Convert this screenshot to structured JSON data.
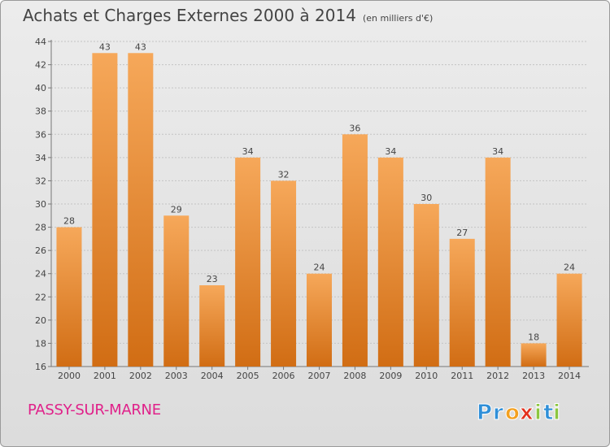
{
  "chart_title": "Achats et Charges Externes 2000 à 2014",
  "chart_subtitle": "(en milliers d'€)",
  "place_name": "PASSY-SUR-MARNE",
  "logo": {
    "text": "Proxiti",
    "letters": [
      "P",
      "r",
      "o",
      "x",
      "i",
      "t",
      "i"
    ],
    "colors": [
      "#2f8fd8",
      "#2f8fd8",
      "#f3a01f",
      "#e3311e",
      "#8cc63f",
      "#2f8fd8",
      "#8cc63f"
    ]
  },
  "colors": {
    "bar_top": "#f6a85a",
    "bar_bottom": "#d16d14",
    "accent": "#e0218a"
  },
  "chart_data": {
    "type": "bar",
    "title": "Achats et Charges Externes 2000 à 2014",
    "subtitle": "(en milliers d'€)",
    "categories": [
      "2000",
      "2001",
      "2002",
      "2003",
      "2004",
      "2005",
      "2006",
      "2007",
      "2008",
      "2009",
      "2010",
      "2011",
      "2012",
      "2013",
      "2014"
    ],
    "values": [
      28,
      43,
      43,
      29,
      23,
      34,
      32,
      24,
      36,
      34,
      30,
      27,
      34,
      18,
      24
    ],
    "ylim": [
      16,
      44
    ],
    "yticks": [
      16,
      18,
      20,
      22,
      24,
      26,
      28,
      30,
      32,
      34,
      36,
      38,
      40,
      42,
      44
    ],
    "grid": true,
    "legend": "none"
  }
}
